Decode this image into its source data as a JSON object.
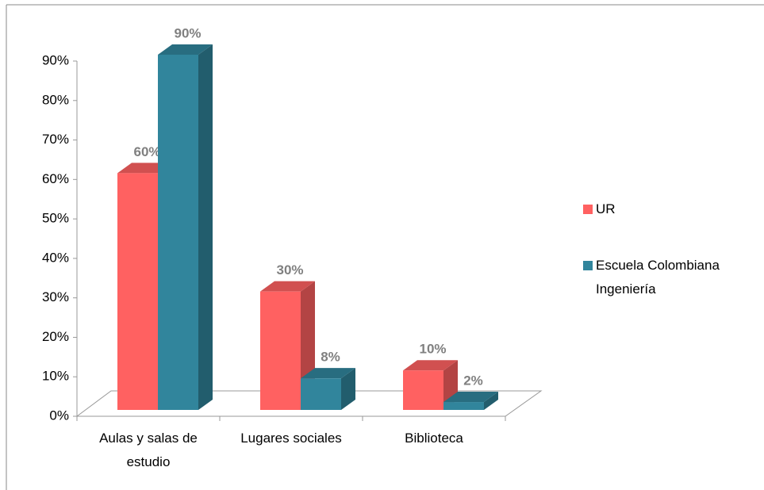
{
  "chart_data": {
    "type": "bar3d",
    "categories": [
      "Aulas y salas de estudio",
      "Lugares sociales",
      "Biblioteca"
    ],
    "series": [
      {
        "name": "UR",
        "color": "#ff6161",
        "values": [
          60,
          30,
          10
        ],
        "value_labels": [
          "60%",
          "30%",
          "10%"
        ]
      },
      {
        "name": "Escuela Colombiana Ingeniería",
        "color": "#31859c",
        "values": [
          90,
          8,
          2
        ],
        "value_labels": [
          "90%",
          "8%",
          "2%"
        ]
      }
    ],
    "ylim": [
      0,
      90
    ],
    "yticks": [
      {
        "value": 0,
        "label": "0%"
      },
      {
        "value": 10,
        "label": "10%"
      },
      {
        "value": 20,
        "label": "20%"
      },
      {
        "value": 30,
        "label": "30%"
      },
      {
        "value": 40,
        "label": "40%"
      },
      {
        "value": 50,
        "label": "50%"
      },
      {
        "value": 60,
        "label": "60%"
      },
      {
        "value": 70,
        "label": "70%"
      },
      {
        "value": 80,
        "label": "80%"
      },
      {
        "value": 90,
        "label": "90%"
      }
    ],
    "legend": "right"
  }
}
